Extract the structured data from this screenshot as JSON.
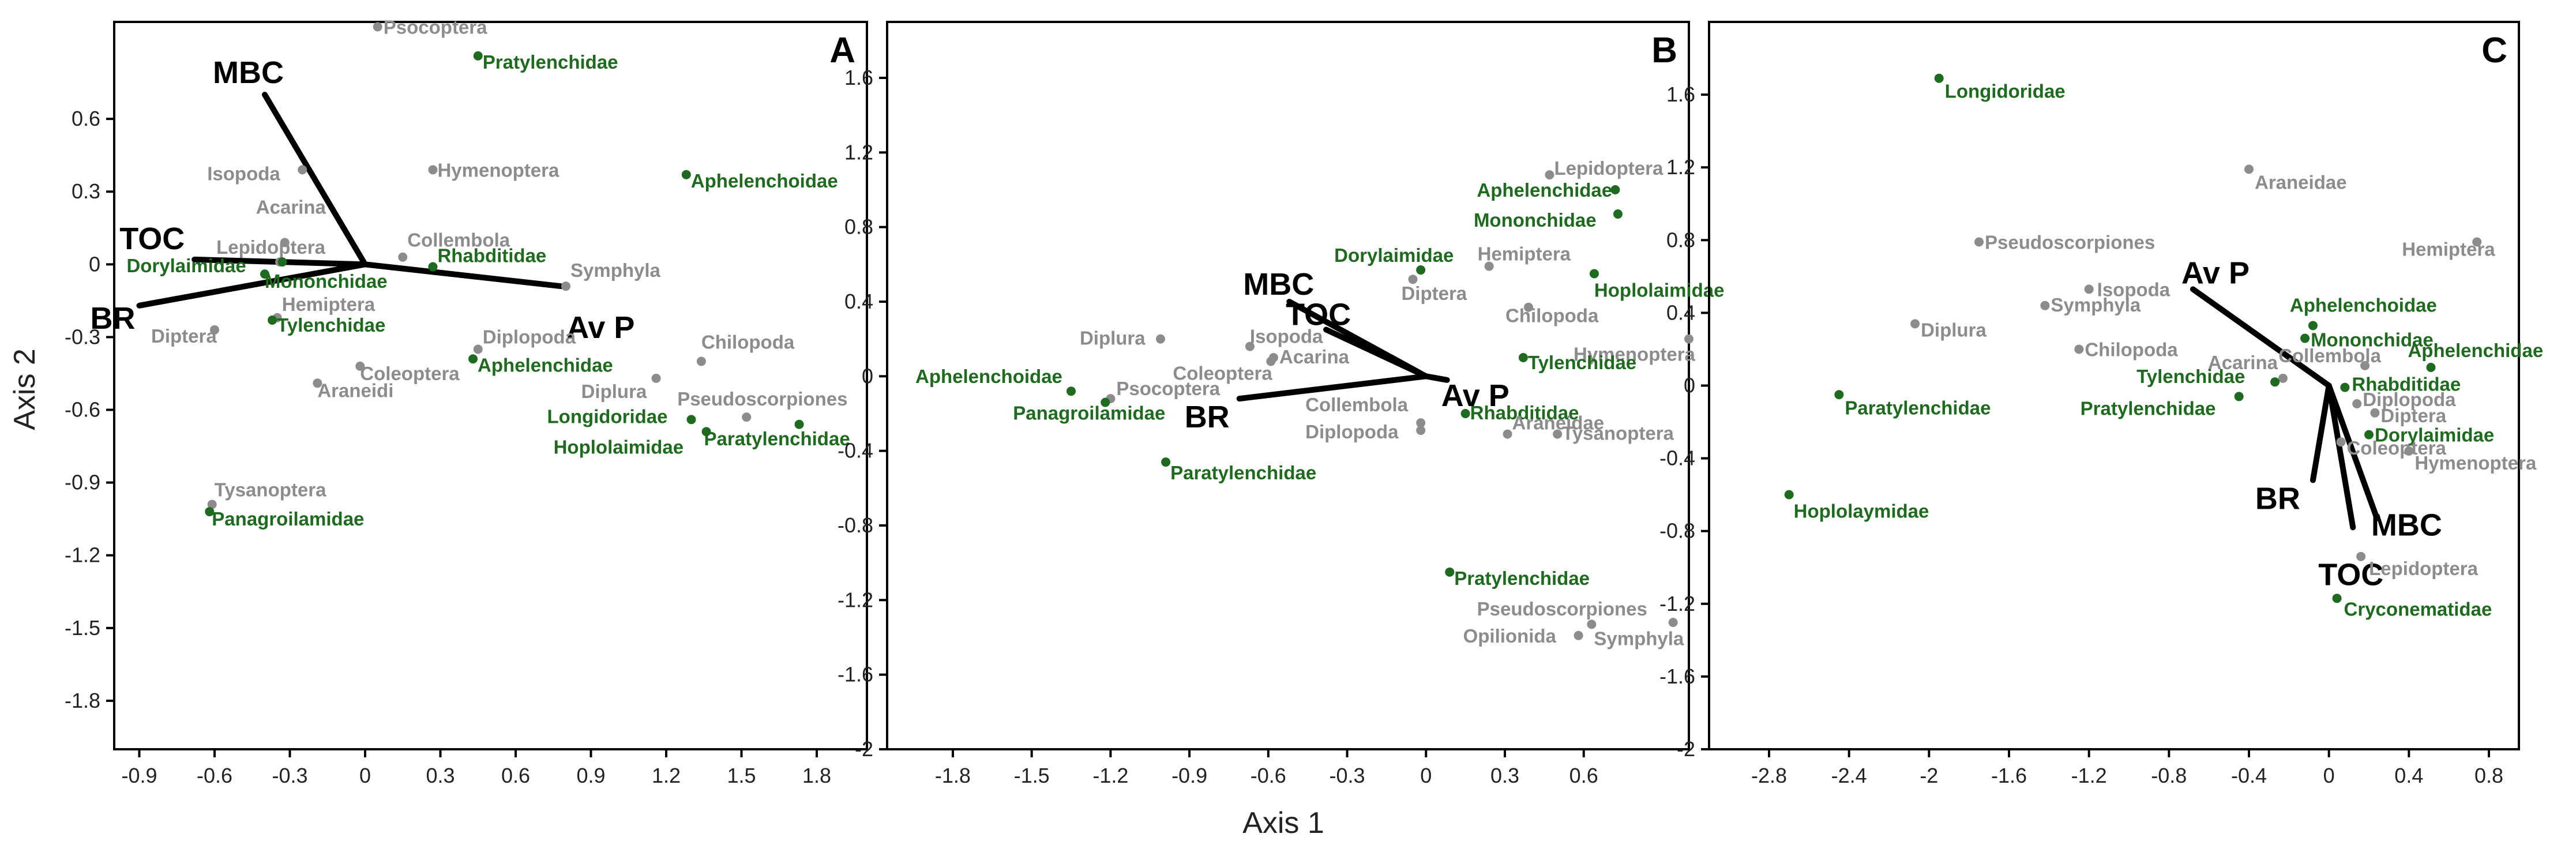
{
  "figure": {
    "xlabel": "Axis 1",
    "ylabel": "Axis 2"
  },
  "chart_data": [
    {
      "type": "scatter",
      "letter": "A",
      "xlim": [
        -1.0,
        2.0
      ],
      "ylim": [
        -2.0,
        1.0
      ],
      "xticks": [
        -0.9,
        -0.6,
        -0.3,
        0,
        0.3,
        0.6,
        0.9,
        1.2,
        1.5,
        1.8
      ],
      "yticks": [
        0.6,
        0.3,
        0,
        -0.3,
        -0.6,
        -0.9,
        -1.2,
        -1.5,
        -1.8
      ],
      "points": [
        {
          "label": "Psocoptera",
          "x": 0.05,
          "y": 0.98,
          "group": "arthropod"
        },
        {
          "label": "Pratylenchidae",
          "x": 0.45,
          "y": 0.86,
          "group": "nematode"
        },
        {
          "label": "Isopoda",
          "x": -0.25,
          "y": 0.39,
          "group": "arthropod"
        },
        {
          "label": "Hymenoptera",
          "x": 0.27,
          "y": 0.39,
          "group": "arthropod"
        },
        {
          "label": "Aphelenchoidae",
          "x": 1.28,
          "y": 0.37,
          "group": "nematode"
        },
        {
          "label": "Acarina",
          "x": -0.32,
          "y": 0.09,
          "group": "arthropod"
        },
        {
          "label": "Lepidoptera",
          "x": -0.34,
          "y": 0.01,
          "group": "arthropod"
        },
        {
          "label": "Collembola",
          "x": 0.15,
          "y": 0.03,
          "group": "arthropod"
        },
        {
          "label": "Dorylaimidae",
          "x": -0.33,
          "y": 0.01,
          "group": "nematode"
        },
        {
          "label": "Mononchidae",
          "x": -0.4,
          "y": -0.04,
          "group": "nematode"
        },
        {
          "label": "Rhabditidae",
          "x": 0.27,
          "y": -0.01,
          "group": "nematode"
        },
        {
          "label": "Symphyla",
          "x": 0.8,
          "y": -0.09,
          "group": "arthropod"
        },
        {
          "label": "Hemiptera",
          "x": -0.35,
          "y": -0.22,
          "group": "arthropod"
        },
        {
          "label": "Tylenchidae",
          "x": -0.37,
          "y": -0.23,
          "group": "nematode"
        },
        {
          "label": "Diptera",
          "x": -0.6,
          "y": -0.27,
          "group": "arthropod"
        },
        {
          "label": "Diplopoda",
          "x": 0.45,
          "y": -0.35,
          "group": "arthropod"
        },
        {
          "label": "Aphelenchidae",
          "x": 0.43,
          "y": -0.39,
          "group": "nematode"
        },
        {
          "label": "Coleoptera",
          "x": -0.02,
          "y": -0.42,
          "group": "arthropod"
        },
        {
          "label": "Araneidi",
          "x": -0.19,
          "y": -0.49,
          "group": "arthropod"
        },
        {
          "label": "Chilopoda",
          "x": 1.34,
          "y": -0.4,
          "group": "arthropod"
        },
        {
          "label": "Diplura",
          "x": 1.16,
          "y": -0.47,
          "group": "arthropod"
        },
        {
          "label": "Pseudoscorpiones",
          "x": 1.52,
          "y": -0.63,
          "group": "arthropod"
        },
        {
          "label": "Longidoridae",
          "x": 1.3,
          "y": -0.64,
          "group": "nematode"
        },
        {
          "label": "Hoplolaimidae",
          "x": 1.36,
          "y": -0.69,
          "group": "nematode"
        },
        {
          "label": "Paratylenchidae",
          "x": 1.73,
          "y": -0.66,
          "group": "nematode"
        },
        {
          "label": "Tysanoptera",
          "x": -0.61,
          "y": -0.99,
          "group": "arthropod"
        },
        {
          "label": "Panagroilamidae",
          "x": -0.62,
          "y": -1.02,
          "group": "nematode"
        }
      ],
      "vectors": [
        {
          "label": "MBC",
          "x": -0.4,
          "y": 0.7
        },
        {
          "label": "TOC",
          "x": -0.68,
          "y": 0.02
        },
        {
          "label": "BR",
          "x": -0.9,
          "y": -0.17
        },
        {
          "label": "Av P",
          "x": 0.78,
          "y": -0.09
        }
      ]
    },
    {
      "type": "scatter",
      "letter": "B",
      "xlim": [
        -2.05,
        1.0
      ],
      "ylim": [
        -2.0,
        1.9
      ],
      "xticks": [
        -1.8,
        -1.5,
        -1.2,
        -0.9,
        -0.6,
        -0.3,
        0,
        0.3,
        0.6
      ],
      "yticks": [
        1.6,
        1.2,
        0.8,
        0.4,
        0,
        -0.4,
        -0.8,
        -1.2,
        -1.6,
        -2
      ],
      "points": [
        {
          "label": "Lepidoptera",
          "x": 0.47,
          "y": 1.08,
          "group": "arthropod"
        },
        {
          "label": "Aphelenchidae",
          "x": 0.72,
          "y": 1.0,
          "group": "nematode"
        },
        {
          "label": "Mononchidae",
          "x": 0.73,
          "y": 0.87,
          "group": "nematode"
        },
        {
          "label": "Dorylaimidae",
          "x": -0.02,
          "y": 0.57,
          "group": "nematode"
        },
        {
          "label": "Hemiptera",
          "x": 0.24,
          "y": 0.59,
          "group": "arthropod"
        },
        {
          "label": "Diptera",
          "x": -0.05,
          "y": 0.52,
          "group": "arthropod"
        },
        {
          "label": "Hoplolaimidae",
          "x": 0.64,
          "y": 0.55,
          "group": "nematode"
        },
        {
          "label": "Chilopoda",
          "x": 0.39,
          "y": 0.37,
          "group": "arthropod"
        },
        {
          "label": "Hymenoptera",
          "x": 1.0,
          "y": 0.2,
          "group": "arthropod"
        },
        {
          "label": "Tylenchidae",
          "x": 0.37,
          "y": 0.1,
          "group": "nematode"
        },
        {
          "label": "Isopoda",
          "x": -0.67,
          "y": 0.16,
          "group": "arthropod"
        },
        {
          "label": "Diplura",
          "x": -1.01,
          "y": 0.2,
          "group": "arthropod"
        },
        {
          "label": "Coleoptera",
          "x": -0.59,
          "y": 0.08,
          "group": "arthropod"
        },
        {
          "label": "Acarina",
          "x": -0.58,
          "y": 0.1,
          "group": "arthropod"
        },
        {
          "label": "Aphelenchoidae",
          "x": -1.35,
          "y": -0.08,
          "group": "nematode"
        },
        {
          "label": "Psocoptera",
          "x": -1.2,
          "y": -0.12,
          "group": "arthropod"
        },
        {
          "label": "Panagroilamidae",
          "x": -1.22,
          "y": -0.14,
          "group": "nematode"
        },
        {
          "label": "Collembola",
          "x": -0.02,
          "y": -0.25,
          "group": "arthropod"
        },
        {
          "label": "Diplopoda",
          "x": -0.02,
          "y": -0.29,
          "group": "arthropod"
        },
        {
          "label": "Rhabditidae",
          "x": 0.15,
          "y": -0.2,
          "group": "nematode"
        },
        {
          "label": "Araneidae",
          "x": 0.31,
          "y": -0.31,
          "group": "arthropod"
        },
        {
          "label": "Tysanoptera",
          "x": 0.5,
          "y": -0.31,
          "group": "arthropod"
        },
        {
          "label": "Paratylenchidae",
          "x": -0.99,
          "y": -0.46,
          "group": "nematode"
        },
        {
          "label": "Pratylenchidae",
          "x": 0.09,
          "y": -1.05,
          "group": "nematode"
        },
        {
          "label": "Pseudoscorpiones",
          "x": 0.94,
          "y": -1.32,
          "group": "arthropod"
        },
        {
          "label": "Opilionida",
          "x": 0.58,
          "y": -1.39,
          "group": "arthropod"
        },
        {
          "label": "Symphyla",
          "x": 0.63,
          "y": -1.33,
          "group": "arthropod"
        }
      ],
      "vectors": [
        {
          "label": "MBC",
          "x": -0.52,
          "y": 0.4
        },
        {
          "label": "TOC",
          "x": -0.38,
          "y": 0.25
        },
        {
          "label": "BR",
          "x": -0.71,
          "y": -0.12
        },
        {
          "label": "Av P",
          "x": 0.08,
          "y": -0.02
        }
      ]
    },
    {
      "type": "scatter",
      "letter": "C",
      "xlim": [
        -3.1,
        0.95
      ],
      "ylim": [
        -2.0,
        2.0
      ],
      "xticks": [
        -2.8,
        -2.4,
        -2,
        -1.6,
        -1.2,
        -0.8,
        -0.4,
        0,
        0.4,
        0.8
      ],
      "yticks": [
        1.6,
        1.2,
        0.8,
        0.4,
        0,
        -0.4,
        -0.8,
        -1.2,
        -1.6,
        -2
      ],
      "points": [
        {
          "label": "Longidoridae",
          "x": -1.95,
          "y": 1.69,
          "group": "nematode"
        },
        {
          "label": "Araneidae",
          "x": -0.4,
          "y": 1.19,
          "group": "arthropod"
        },
        {
          "label": "Pseudoscorpiones",
          "x": -1.75,
          "y": 0.79,
          "group": "arthropod"
        },
        {
          "label": "Hemiptera",
          "x": 0.74,
          "y": 0.79,
          "group": "arthropod"
        },
        {
          "label": "Isopoda",
          "x": -1.2,
          "y": 0.53,
          "group": "arthropod"
        },
        {
          "label": "Symphyla",
          "x": -1.42,
          "y": 0.44,
          "group": "arthropod"
        },
        {
          "label": "Diplura",
          "x": -2.07,
          "y": 0.34,
          "group": "arthropod"
        },
        {
          "label": "Chilopoda",
          "x": -1.25,
          "y": 0.2,
          "group": "arthropod"
        },
        {
          "label": "Aphelenchoidae",
          "x": -0.08,
          "y": 0.33,
          "group": "nematode"
        },
        {
          "label": "Mononchidae",
          "x": -0.12,
          "y": 0.26,
          "group": "nematode"
        },
        {
          "label": "Aphelenchidae",
          "x": 0.51,
          "y": 0.1,
          "group": "nematode"
        },
        {
          "label": "Acarina",
          "x": -0.23,
          "y": 0.04,
          "group": "arthropod"
        },
        {
          "label": "Collembola",
          "x": 0.18,
          "y": 0.11,
          "group": "arthropod"
        },
        {
          "label": "Tylenchidae",
          "x": -0.27,
          "y": 0.02,
          "group": "nematode"
        },
        {
          "label": "Rhabditidae",
          "x": 0.08,
          "y": -0.01,
          "group": "nematode"
        },
        {
          "label": "Pratylenchidae",
          "x": -0.45,
          "y": -0.06,
          "group": "nematode"
        },
        {
          "label": "Paratylenchidae",
          "x": -2.45,
          "y": -0.05,
          "group": "nematode"
        },
        {
          "label": "Diplopoda",
          "x": 0.14,
          "y": -0.1,
          "group": "arthropod"
        },
        {
          "label": "Diptera",
          "x": 0.23,
          "y": -0.15,
          "group": "arthropod"
        },
        {
          "label": "Dorylaimidae",
          "x": 0.2,
          "y": -0.27,
          "group": "nematode"
        },
        {
          "label": "Coleoptera",
          "x": 0.06,
          "y": -0.31,
          "group": "arthropod"
        },
        {
          "label": "Hymenoptera",
          "x": 0.4,
          "y": -0.36,
          "group": "arthropod"
        },
        {
          "label": "Hoplolaymidae",
          "x": -2.7,
          "y": -0.6,
          "group": "nematode"
        },
        {
          "label": "Lepidoptera",
          "x": 0.16,
          "y": -0.94,
          "group": "arthropod"
        },
        {
          "label": "Cryconematidae",
          "x": 0.04,
          "y": -1.17,
          "group": "nematode"
        }
      ],
      "vectors": [
        {
          "label": "Av P",
          "x": -0.68,
          "y": 0.53
        },
        {
          "label": "BR",
          "x": -0.08,
          "y": -0.52
        },
        {
          "label": "MBC",
          "x": 0.24,
          "y": -0.73
        },
        {
          "label": "TOC",
          "x": 0.12,
          "y": -0.78
        }
      ]
    }
  ],
  "colors": {
    "arthropod": "#8c8c8c",
    "nematode": "#1e6a1e",
    "vector": "#000000"
  }
}
